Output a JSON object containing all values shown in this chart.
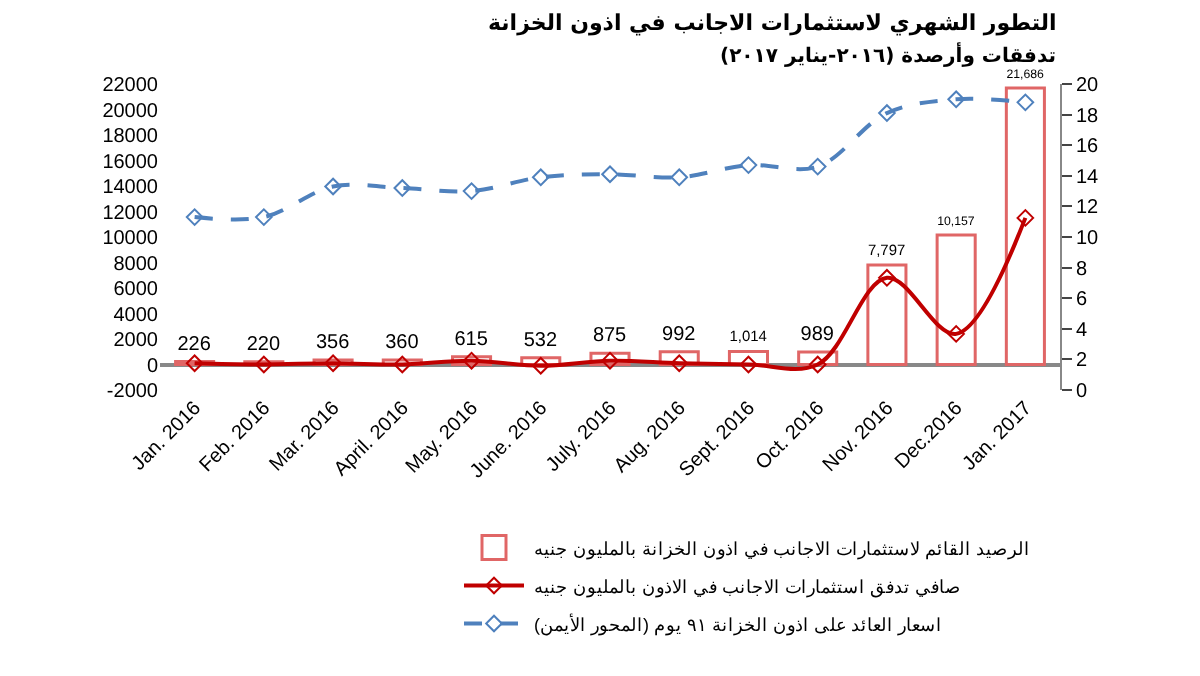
{
  "chart_data": {
    "type": "bar",
    "title": "التطور الشهري لاستثمارات الاجانب في اذون الخزانة",
    "subtitle": "تدفقات وأرصدة (٢٠١٦-يناير ٢٠١٧)",
    "categories": [
      "Jan. 2016",
      "Feb. 2016",
      "Mar. 2016",
      "April. 2016",
      "May. 2016",
      "June. 2016",
      "July. 2016",
      "Aug. 2016",
      "Sept. 2016",
      "Oct. 2016",
      "Nov. 2016",
      "Dec.2016",
      "Jan. 2017"
    ],
    "series": [
      {
        "name": "الرصيد القائم لاستثمارات الاجانب في اذون الخزانة بالمليون جنيه",
        "color": "#e06666",
        "values": [
          226,
          220,
          356,
          360,
          615,
          532,
          875,
          992,
          1014,
          989,
          7797,
          10157,
          21686
        ],
        "value_labels": [
          "226",
          "220",
          "356",
          "360",
          "615",
          "532",
          "875",
          "992",
          "1,014",
          "989",
          "7,797",
          "10,157",
          "21,686"
        ]
      },
      {
        "name": "صافي تدفق استثمارات الاجانب في الاذون بالمليون جنيه",
        "type": "line",
        "color": "#c00000",
        "marker": "diamond",
        "line_style": "solid",
        "values": [
          100,
          0,
          100,
          0,
          300,
          -100,
          300,
          100,
          0,
          0,
          6800,
          2400,
          11500
        ]
      },
      {
        "name": "اسعار العائد على اذون الخزانة ٩١ يوم (المحور الأيمن)",
        "type": "line",
        "axis": "y2",
        "color": "#4f81bd",
        "marker": "diamond",
        "line_style": "dashed",
        "values": [
          11.3,
          11.3,
          13.3,
          13.2,
          13.0,
          13.9,
          14.1,
          13.9,
          14.7,
          14.6,
          18.1,
          19.0,
          18.8
        ]
      }
    ],
    "ylim": [
      -2000,
      22000
    ],
    "yticks": [
      -2000,
      0,
      2000,
      4000,
      6000,
      8000,
      10000,
      12000,
      14000,
      16000,
      18000,
      20000,
      22000
    ],
    "y2lim": [
      0,
      20
    ],
    "y2ticks": [
      0,
      2,
      4,
      6,
      8,
      10,
      12,
      14,
      16,
      18,
      20
    ],
    "legend": "bottom"
  }
}
